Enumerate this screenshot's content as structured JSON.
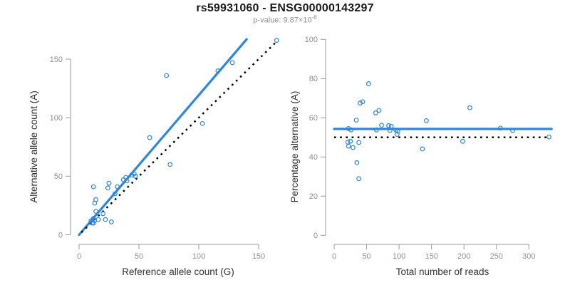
{
  "header": {
    "title": "rs59931060 - ENSG00000143297",
    "pvalue_base": "p-value: 9.87×10",
    "pvalue_exponent": "-6"
  },
  "colors": {
    "accent_blue": "#2b86e2",
    "reference_black": "#000000",
    "axis_gray": "#9a9a9a",
    "tick_label_gray": "#8f8f8f"
  },
  "chart_data": [
    {
      "type": "scatter",
      "xlabel": "Reference allele count (G)",
      "ylabel": "Alternative allele count (A)",
      "xlim": [
        0,
        168
      ],
      "ylim": [
        0,
        168
      ],
      "xticks": [
        0,
        50,
        100,
        150
      ],
      "yticks": [
        0,
        50,
        100,
        150
      ],
      "grid": false,
      "marker": "open-circle",
      "points": [
        [
          165,
          166
        ],
        [
          128,
          147
        ],
        [
          116,
          140
        ],
        [
          73,
          136
        ],
        [
          103,
          95
        ],
        [
          59,
          83
        ],
        [
          76,
          60
        ],
        [
          46,
          52
        ],
        [
          44,
          51
        ],
        [
          47,
          50
        ],
        [
          39,
          49
        ],
        [
          40,
          46
        ],
        [
          37,
          47
        ],
        [
          32,
          41
        ],
        [
          25,
          44
        ],
        [
          24,
          40
        ],
        [
          30,
          35
        ],
        [
          12,
          41
        ],
        [
          14,
          30
        ],
        [
          13,
          27
        ],
        [
          14,
          20
        ],
        [
          20,
          18
        ],
        [
          22,
          13
        ],
        [
          27,
          11
        ],
        [
          13,
          12
        ],
        [
          12,
          14
        ],
        [
          10,
          12
        ],
        [
          12,
          10
        ],
        [
          16,
          13
        ],
        [
          11,
          10
        ]
      ],
      "lines": [
        {
          "role": "fit-line",
          "style": "solid",
          "color": "accent_blue",
          "x1": 0,
          "y1": 0,
          "x2": 140,
          "y2": 167
        },
        {
          "role": "identity-line",
          "style": "dotted",
          "color": "reference_black",
          "x1": 2,
          "y1": 2,
          "x2": 166,
          "y2": 166
        }
      ]
    },
    {
      "type": "scatter",
      "xlabel": "Total number of reads",
      "ylabel": "Percentage alternative (A)",
      "xlim": [
        0,
        340
      ],
      "ylim": [
        0,
        100
      ],
      "xticks": [
        0,
        50,
        100,
        150,
        200,
        250,
        300
      ],
      "yticks": [
        0,
        20,
        40,
        60,
        80,
        100
      ],
      "grid": false,
      "marker": "open-circle",
      "points": [
        [
          331,
          50.2
        ],
        [
          275,
          53.5
        ],
        [
          256,
          54.7
        ],
        [
          209,
          65.1
        ],
        [
          198,
          48.0
        ],
        [
          142,
          58.5
        ],
        [
          136,
          44.1
        ],
        [
          98,
          53.1
        ],
        [
          95,
          53.7
        ],
        [
          97,
          51.5
        ],
        [
          88,
          55.7
        ],
        [
          86,
          53.5
        ],
        [
          84,
          56.0
        ],
        [
          73,
          56.2
        ],
        [
          69,
          63.8
        ],
        [
          64,
          62.5
        ],
        [
          65,
          53.8
        ],
        [
          53,
          77.4
        ],
        [
          44,
          68.2
        ],
        [
          40,
          67.5
        ],
        [
          34,
          58.8
        ],
        [
          38,
          47.4
        ],
        [
          35,
          37.1
        ],
        [
          38,
          28.9
        ],
        [
          25,
          48.0
        ],
        [
          26,
          53.8
        ],
        [
          22,
          54.5
        ],
        [
          22,
          45.5
        ],
        [
          29,
          44.8
        ],
        [
          21,
          47.6
        ]
      ],
      "lines": [
        {
          "role": "mean-line",
          "style": "solid",
          "color": "accent_blue",
          "x1": 0,
          "y1": 54.3,
          "x2": 335,
          "y2": 54.3
        },
        {
          "role": "null-line",
          "style": "dotted",
          "color": "reference_black",
          "x1": 0,
          "y1": 50,
          "x2": 333,
          "y2": 50
        }
      ]
    }
  ]
}
